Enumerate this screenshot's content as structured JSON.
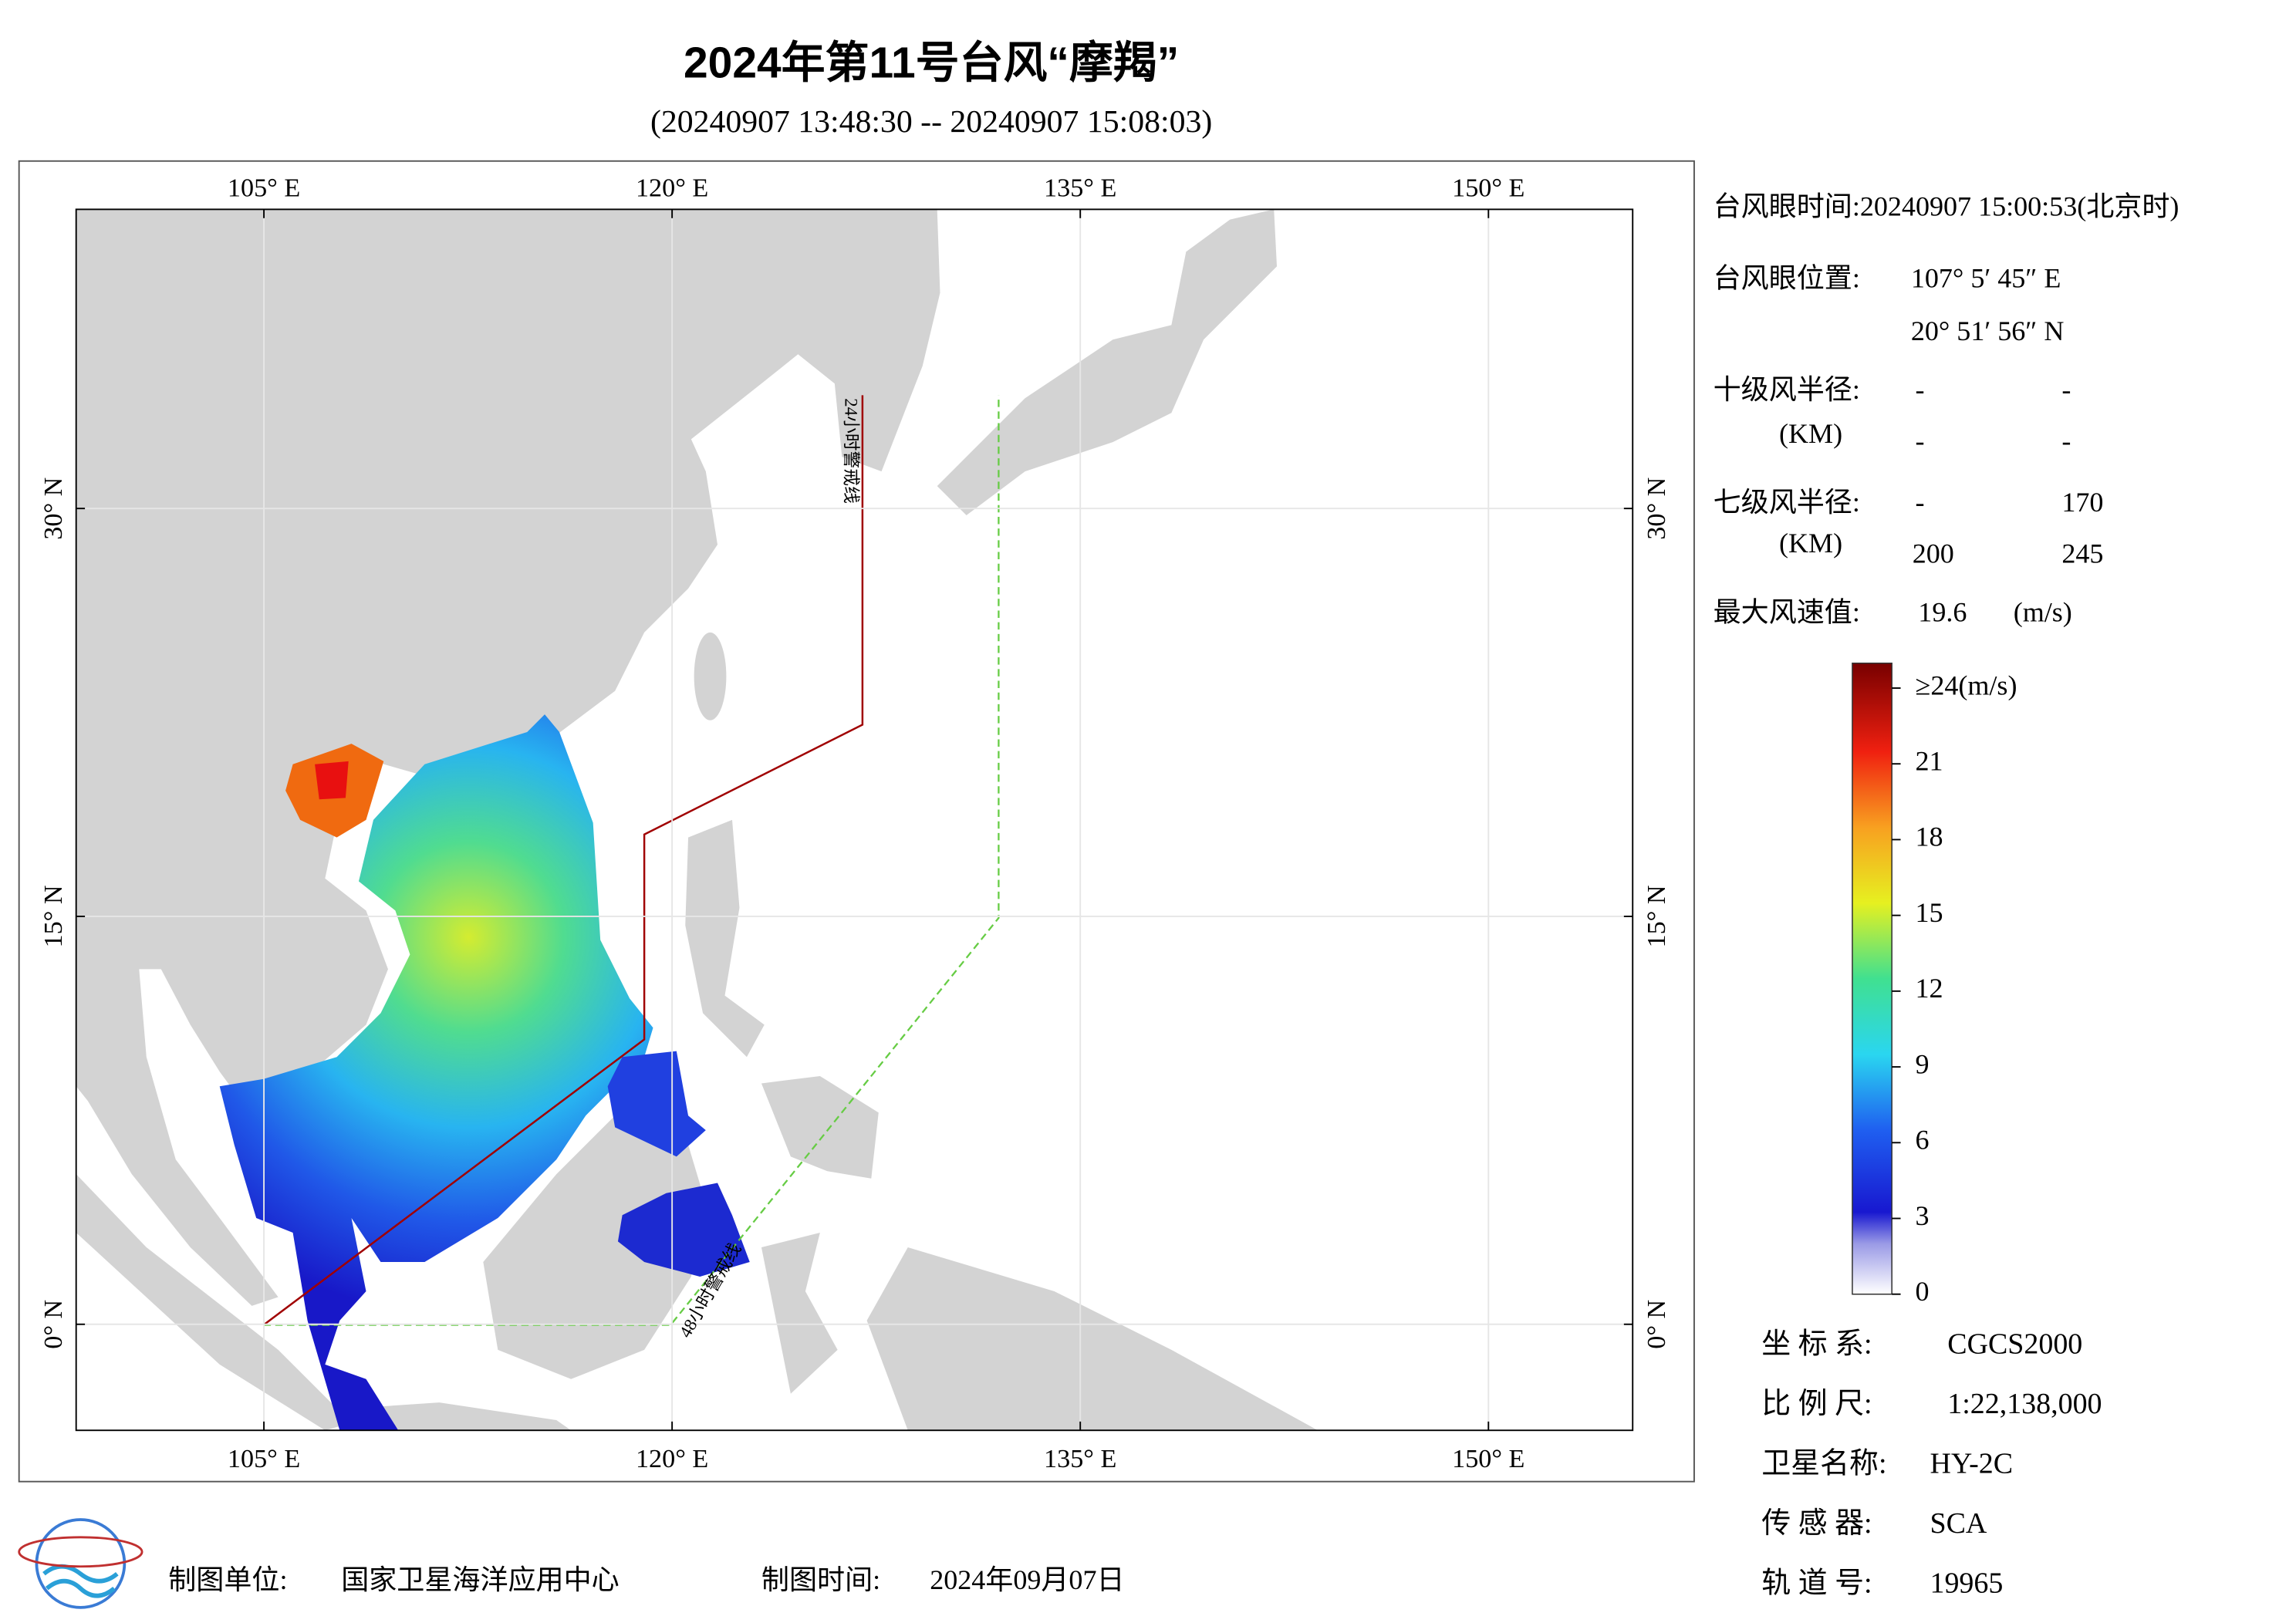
{
  "title": "2024年第11号台风“摩羯”",
  "subtitle": "(20240907 13:48:30 -- 20240907 15:08:03)",
  "map": {
    "lon_range": [
      98.1,
      155.3
    ],
    "lat_range": [
      -3.9,
      41
    ],
    "lon_ticks": [
      {
        "value": 105,
        "label": "105° E"
      },
      {
        "value": 120,
        "label": "120° E"
      },
      {
        "value": 135,
        "label": "135° E"
      },
      {
        "value": 150,
        "label": "150° E"
      }
    ],
    "lat_ticks": [
      {
        "value": 0,
        "label": "0° N"
      },
      {
        "value": 15,
        "label": "15° N"
      },
      {
        "value": 30,
        "label": "30° N"
      }
    ],
    "line_24h": "24小时警戒线",
    "line_48h": "48小时警戒线"
  },
  "info": {
    "eye_time": "台风眼时间:20240907 15:00:53(北京时)",
    "eye_position": {
      "label": "台风眼位置:",
      "lon": "107° 5′ 45″ E",
      "lat": "20° 51′ 56″ N"
    },
    "force10_radius": {
      "label": "十级风半径:",
      "unit": "(KM)",
      "values": [
        "-",
        "-",
        "-",
        "-"
      ]
    },
    "force7_radius": {
      "label": "七级风半径:",
      "unit": "(KM)",
      "values": [
        "-",
        170,
        200,
        245
      ]
    },
    "max_wind": {
      "label": "最大风速值:",
      "value": 19.6,
      "unit": "(m/s)"
    }
  },
  "colorbar": {
    "clim": [
      0,
      24
    ],
    "ticks": [
      0,
      3,
      6,
      9,
      12,
      15,
      18,
      21,
      {
        "value": 24,
        "label": "≥24(m/s)"
      }
    ]
  },
  "meta": [
    {
      "label": "坐 标 系:",
      "value": "CGCS2000"
    },
    {
      "label": "比 例 尺:",
      "value": "1:22,138,000"
    },
    {
      "label": "卫星名称:",
      "value": "HY-2C"
    },
    {
      "label": "传 感 器:",
      "value": "SCA"
    },
    {
      "label": "轨 道 号:",
      "value": "19965"
    }
  ],
  "footer": {
    "unit_label": "制图单位:",
    "unit": "国家卫星海洋应用中心",
    "date_label": "制图时间:",
    "date": "2024年09月07日"
  }
}
